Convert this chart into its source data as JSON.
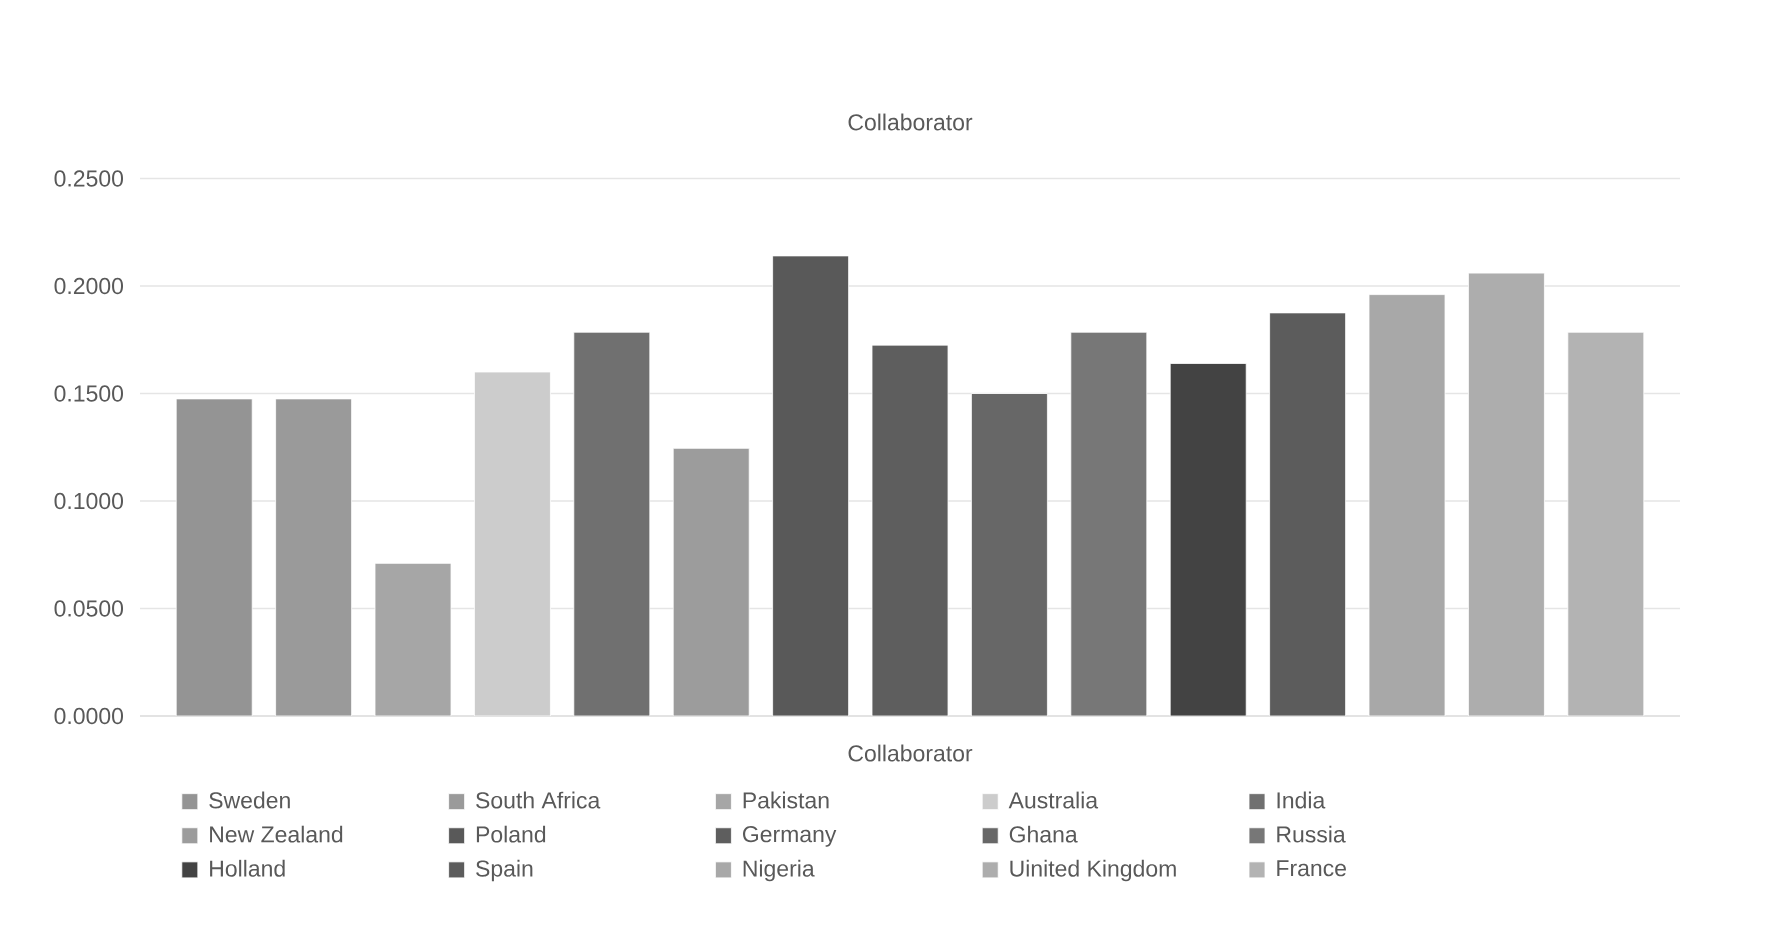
{
  "chart_data": {
    "type": "bar",
    "title": "Collaborator",
    "categories": [
      "Collaborator"
    ],
    "series": [
      {
        "name": "Sweden",
        "color": "#949494",
        "values": [
          0.1475
        ]
      },
      {
        "name": "South Africa",
        "color": "#9a9a9a",
        "values": [
          0.1475
        ]
      },
      {
        "name": "Pakistan",
        "color": "#a6a6a6",
        "values": [
          0.071
        ]
      },
      {
        "name": "Australia",
        "color": "#cccccc",
        "values": [
          0.16
        ]
      },
      {
        "name": "India",
        "color": "#707070",
        "values": [
          0.1785
        ]
      },
      {
        "name": "New Zealand",
        "color": "#9c9c9c",
        "values": [
          0.1245
        ]
      },
      {
        "name": "Poland",
        "color": "#595959",
        "values": [
          0.214
        ]
      },
      {
        "name": "Germany",
        "color": "#5e5e5e",
        "values": [
          0.1725
        ]
      },
      {
        "name": "Ghana",
        "color": "#676767",
        "values": [
          0.15
        ]
      },
      {
        "name": "Russia",
        "color": "#777777",
        "values": [
          0.1785
        ]
      },
      {
        "name": "Holland",
        "color": "#434343",
        "values": [
          0.164
        ]
      },
      {
        "name": "Spain",
        "color": "#5c5c5c",
        "values": [
          0.1875
        ]
      },
      {
        "name": "Nigeria",
        "color": "#a8a8a8",
        "values": [
          0.196
        ]
      },
      {
        "name": "Uinited Kingdom",
        "color": "#adadad",
        "values": [
          0.206
        ]
      },
      {
        "name": "France",
        "color": "#b3b3b3",
        "values": [
          0.1785
        ]
      }
    ],
    "ylim": [
      0,
      0.25
    ],
    "yticks": [
      {
        "value": 0,
        "label": "0.0000"
      },
      {
        "value": 0.05,
        "label": "0.0500"
      },
      {
        "value": 0.1,
        "label": "0.1000"
      },
      {
        "value": 0.15,
        "label": "0.1500"
      },
      {
        "value": 0.2,
        "label": "0.2000"
      },
      {
        "value": 0.25,
        "label": "0.2500"
      }
    ],
    "grid": "y",
    "legend": "bottom"
  }
}
